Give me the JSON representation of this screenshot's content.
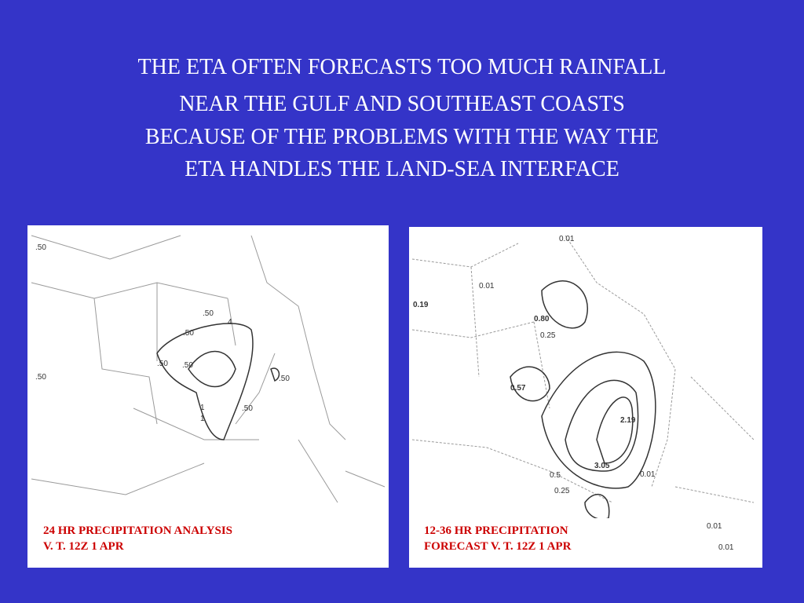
{
  "title": {
    "lines": [
      "THE ETA OFTEN FORECASTS  TOO MUCH RAINFALL",
      "NEAR THE GULF AND SOUTHEAST COASTS",
      "BECAUSE OF THE PROBLEMS WITH THE WAY THE",
      "ETA HANDLES THE LAND-SEA INTERFACE"
    ]
  },
  "left_map": {
    "caption": [
      "24 HR PRECIPITATION ANALYSIS",
      "V. T. 12Z 1 APR"
    ],
    "labels": [
      ".50",
      ".50",
      "4",
      ".50",
      ".50",
      ".50",
      ".50",
      "1",
      "1",
      ".50",
      ".50"
    ]
  },
  "right_map": {
    "caption": [
      "12-36 HR PRECIPITATION",
      "FORECAST V. T. 12Z 1 APR"
    ],
    "labels": [
      "0.01",
      "0.01",
      "0.19",
      "0.80",
      "0.25",
      "0.57",
      "2.19",
      "3.05",
      "0.01",
      "0.5",
      "0.25",
      "0.01",
      "0.01"
    ]
  }
}
